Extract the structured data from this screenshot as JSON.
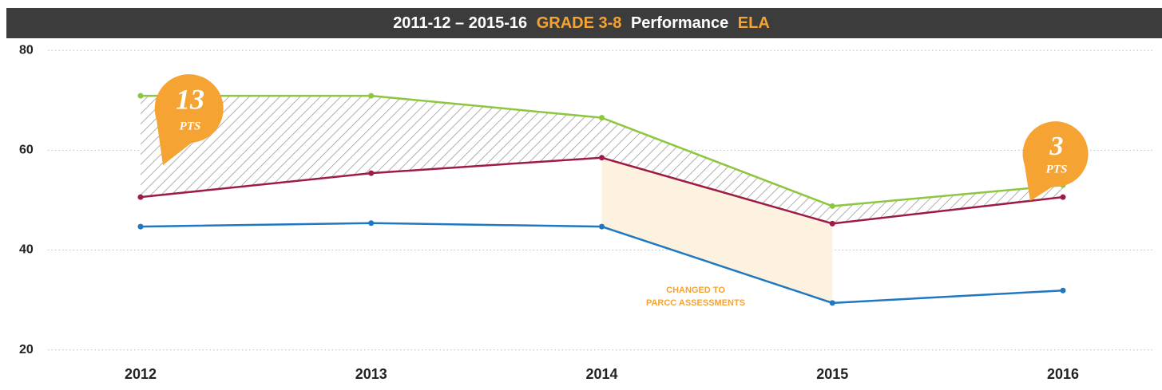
{
  "chart_data": {
    "type": "line",
    "title_segments": [
      {
        "text": "2011-12 – 2015-16",
        "color": "#ffffff"
      },
      {
        "text": "GRADE 3-8",
        "color": "#f5a333"
      },
      {
        "text": "Performance",
        "color": "#ffffff"
      },
      {
        "text": "ELA",
        "color": "#f5a333"
      }
    ],
    "categories": [
      "2012",
      "2013",
      "2014",
      "2015",
      "2016"
    ],
    "series": [
      {
        "color": "#8dc63f",
        "values": [
          70.9,
          70.9,
          66.5,
          48.8,
          53.0
        ]
      },
      {
        "color": "#9e1b46",
        "values": [
          50.6,
          55.4,
          58.5,
          45.3,
          50.6
        ]
      },
      {
        "color": "#1f78c1",
        "values": [
          44.7,
          45.4,
          44.7,
          29.4,
          31.9
        ]
      }
    ],
    "ylim": [
      15.8,
      80.5
    ],
    "yticks": [
      20,
      40,
      60,
      80
    ],
    "grid": true,
    "callouts": [
      {
        "value": "13",
        "unit": "PTS"
      },
      {
        "value": "3",
        "unit": "PTS"
      }
    ],
    "note": [
      "CHANGED TO",
      "PARCC ASSESSMENTS"
    ]
  }
}
